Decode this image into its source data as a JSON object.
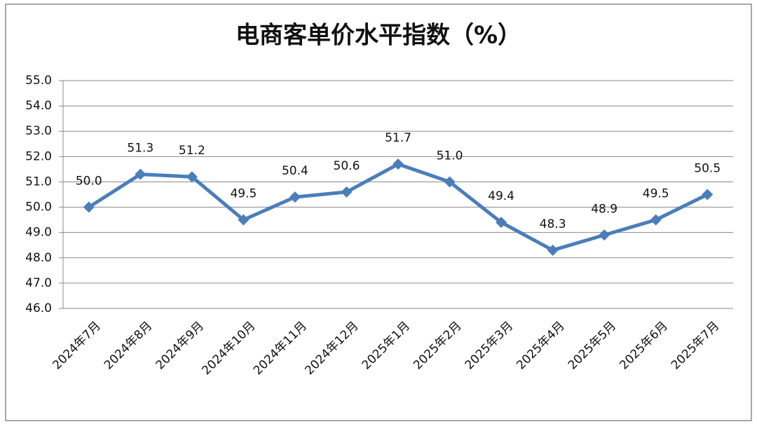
{
  "chart_data": {
    "type": "line",
    "title": "电商客单价水平指数（%）",
    "categories": [
      "2024年7月",
      "2024年8月",
      "2024年9月",
      "2024年10月",
      "2024年11月",
      "2024年12月",
      "2025年1月",
      "2025年2月",
      "2025年3月",
      "2025年4月",
      "2025年5月",
      "2025年6月",
      "2025年7月"
    ],
    "values": [
      50.0,
      51.3,
      51.2,
      49.5,
      50.4,
      50.6,
      51.7,
      51.0,
      49.4,
      48.3,
      48.9,
      49.5,
      50.5
    ],
    "value_labels": [
      "50.0",
      "51.3",
      "51.2",
      "49.5",
      "50.4",
      "50.6",
      "51.7",
      "51.0",
      "49.4",
      "48.3",
      "48.9",
      "49.5",
      "50.5"
    ],
    "color": "#4a7ebb",
    "ylim": [
      46,
      55
    ],
    "yticks": [
      {
        "value": 46,
        "label": "46.0"
      },
      {
        "value": 47,
        "label": "47.0"
      },
      {
        "value": 48,
        "label": "48.0"
      },
      {
        "value": 49,
        "label": "49.0"
      },
      {
        "value": 50,
        "label": "50.0"
      },
      {
        "value": 51,
        "label": "51.0"
      },
      {
        "value": 52,
        "label": "52.0"
      },
      {
        "value": 53,
        "label": "53.0"
      },
      {
        "value": 54,
        "label": "54.0"
      },
      {
        "value": 55,
        "label": "55.0"
      }
    ],
    "grid": true
  }
}
